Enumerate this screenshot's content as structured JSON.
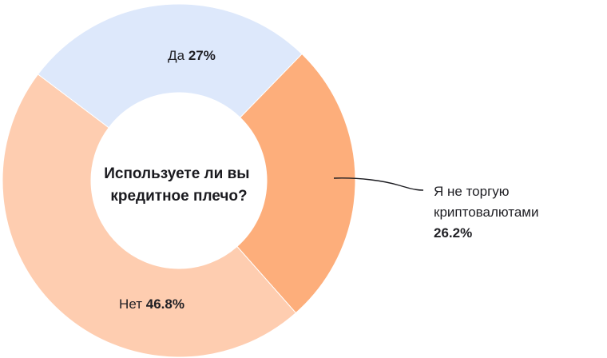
{
  "chart_data": {
    "type": "pie",
    "center_title": [
      "Используете ли вы",
      "кредитное плечо?"
    ],
    "slices": [
      {
        "label": "Да",
        "value": 27,
        "value_label": "27%",
        "color": "#dde8fb"
      },
      {
        "label": "Я не торгую криптовалютами",
        "label_lines": [
          "Я не торгую",
          "криптовалютами"
        ],
        "value": 26.2,
        "value_label": "26.2%",
        "color": "#fdae7b"
      },
      {
        "label": "Нет",
        "value": 46.8,
        "value_label": "46.8%",
        "color": "#fecdb0"
      }
    ],
    "donut": true,
    "legend": "none"
  }
}
